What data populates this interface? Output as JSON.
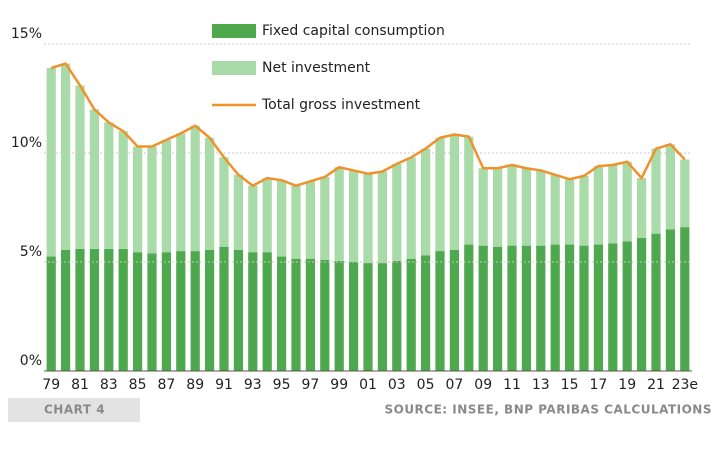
{
  "chart_data": {
    "type": "stacked_bar_line",
    "categories": [
      "79",
      null,
      "81",
      null,
      "83",
      null,
      "85",
      null,
      "87",
      null,
      "89",
      null,
      "91",
      null,
      "93",
      null,
      "95",
      null,
      "97",
      null,
      "99",
      null,
      "01",
      null,
      "03",
      null,
      "05",
      null,
      "07",
      null,
      "09",
      null,
      "11",
      null,
      "13",
      null,
      "15",
      null,
      "17",
      null,
      "19",
      null,
      "21",
      null,
      "23e"
    ],
    "series": [
      {
        "name": "Fixed capital consumption",
        "color": "#4ea84e",
        "kind": "bar",
        "values": [
          5.25,
          5.55,
          5.6,
          5.6,
          5.6,
          5.6,
          5.45,
          5.4,
          5.45,
          5.5,
          5.5,
          5.55,
          5.7,
          5.55,
          5.45,
          5.45,
          5.25,
          5.15,
          5.15,
          5.1,
          5.05,
          5.0,
          4.95,
          4.95,
          5.05,
          5.15,
          5.3,
          5.5,
          5.55,
          5.8,
          5.75,
          5.7,
          5.75,
          5.75,
          5.75,
          5.8,
          5.8,
          5.75,
          5.8,
          5.85,
          5.95,
          6.1,
          6.3,
          6.5,
          6.6
        ]
      },
      {
        "name": "Net investment",
        "color": "#a9dba9",
        "kind": "bar",
        "values": [
          8.65,
          8.55,
          7.5,
          6.4,
          5.8,
          5.4,
          4.85,
          4.9,
          5.15,
          5.4,
          5.75,
          5.15,
          4.1,
          3.45,
          3.05,
          3.4,
          3.5,
          3.35,
          3.55,
          3.8,
          4.3,
          4.2,
          4.1,
          4.2,
          4.45,
          4.65,
          4.9,
          5.2,
          5.3,
          4.95,
          3.55,
          3.6,
          3.7,
          3.55,
          3.45,
          3.2,
          3.0,
          3.2,
          3.6,
          3.6,
          3.65,
          2.75,
          3.9,
          3.9,
          3.1
        ]
      },
      {
        "name": "Total gross investment",
        "color": "#f0922b",
        "kind": "line",
        "values": [
          13.9,
          14.1,
          13.1,
          12.0,
          11.4,
          11.0,
          10.3,
          10.3,
          10.6,
          10.9,
          11.25,
          10.7,
          9.8,
          9.0,
          8.5,
          8.85,
          8.75,
          8.5,
          8.7,
          8.9,
          9.35,
          9.2,
          9.05,
          9.15,
          9.5,
          9.8,
          10.2,
          10.7,
          10.85,
          10.75,
          9.3,
          9.3,
          9.45,
          9.3,
          9.2,
          9.0,
          8.8,
          8.95,
          9.4,
          9.45,
          9.6,
          8.85,
          10.2,
          10.4,
          9.7
        ]
      }
    ],
    "ylim": [
      0,
      15
    ],
    "yticks": [
      {
        "value": 0,
        "label": "0%"
      },
      {
        "value": 5,
        "label": "5%"
      },
      {
        "value": 10,
        "label": "10%"
      },
      {
        "value": 15,
        "label": "15%"
      }
    ],
    "grid": true,
    "legend": "top",
    "chart_label": "CHART 4",
    "source": "SOURCE: INSEE, BNP PARIBAS CALCULATIONS"
  }
}
